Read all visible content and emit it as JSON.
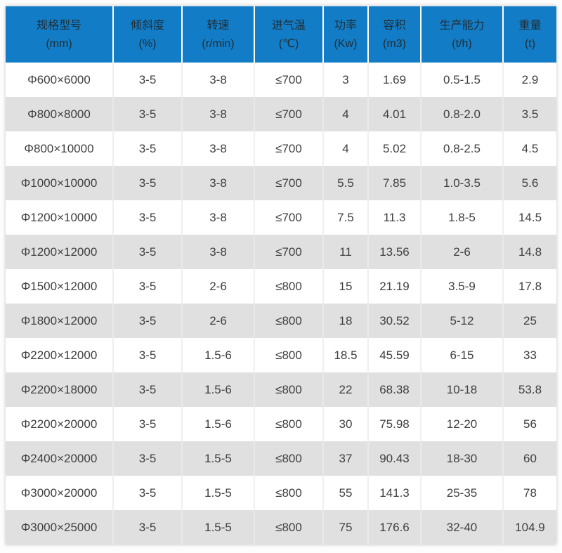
{
  "colors": {
    "header_bg": "#127dc6",
    "header_text": "#212b33",
    "cell_text": "#3f3f3f",
    "row_bg": "#ffffff",
    "row_alt_bg": "#e0e0e0",
    "divider": "#efefef"
  },
  "chart_data": {
    "type": "table",
    "title": "",
    "columns": [
      {
        "label": "规格型号",
        "unit": "(mm)"
      },
      {
        "label": "倾斜度",
        "unit": "(%)"
      },
      {
        "label": "转速",
        "unit": "(r/min)"
      },
      {
        "label": "进气温",
        "unit": "(℃)"
      },
      {
        "label": "功率",
        "unit": "(Kw)"
      },
      {
        "label": "容积",
        "unit": "(m3)"
      },
      {
        "label": "生产能力",
        "unit": "(t/h)"
      },
      {
        "label": "重量",
        "unit": "(t)"
      }
    ],
    "rows": [
      [
        "Φ600×6000",
        "3-5",
        "3-8",
        "≤700",
        "3",
        "1.69",
        "0.5-1.5",
        "2.9"
      ],
      [
        "Φ800×8000",
        "3-5",
        "3-8",
        "≤700",
        "4",
        "4.01",
        "0.8-2.0",
        "3.5"
      ],
      [
        "Φ800×10000",
        "3-5",
        "3-8",
        "≤700",
        "4",
        "5.02",
        "0.8-2.5",
        "4.5"
      ],
      [
        "Φ1000×10000",
        "3-5",
        "3-8",
        "≤700",
        "5.5",
        "7.85",
        "1.0-3.5",
        "5.6"
      ],
      [
        "Φ1200×10000",
        "3-5",
        "3-8",
        "≤700",
        "7.5",
        "11.3",
        "1.8-5",
        "14.5"
      ],
      [
        "Φ1200×12000",
        "3-5",
        "3-8",
        "≤700",
        "11",
        "13.56",
        "2-6",
        "14.8"
      ],
      [
        "Φ1500×12000",
        "3-5",
        "2-6",
        "≤800",
        "15",
        "21.19",
        "3.5-9",
        "17.8"
      ],
      [
        "Φ1800×12000",
        "3-5",
        "2-6",
        "≤800",
        "18",
        "30.52",
        "5-12",
        "25"
      ],
      [
        "Φ2200×12000",
        "3-5",
        "1.5-6",
        "≤800",
        "18.5",
        "45.59",
        "6-15",
        "33"
      ],
      [
        "Φ2200×18000",
        "3-5",
        "1.5-6",
        "≤800",
        "22",
        "68.38",
        "10-18",
        "53.8"
      ],
      [
        "Φ2200×20000",
        "3-5",
        "1.5-6",
        "≤800",
        "30",
        "75.98",
        "12-20",
        "56"
      ],
      [
        "Φ2400×20000",
        "3-5",
        "1.5-5",
        "≤800",
        "37",
        "90.43",
        "18-30",
        "60"
      ],
      [
        "Φ3000×20000",
        "3-5",
        "1.5-5",
        "≤800",
        "55",
        "141.3",
        "25-35",
        "78"
      ],
      [
        "Φ3000×25000",
        "3-5",
        "1.5-5",
        "≤800",
        "75",
        "176.6",
        "32-40",
        "104.9"
      ]
    ]
  }
}
